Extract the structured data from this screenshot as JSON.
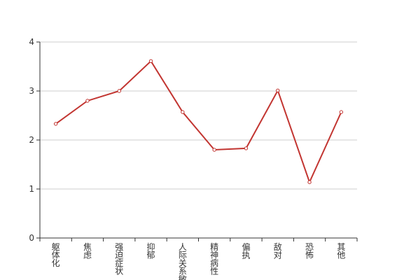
{
  "chart_data": {
    "type": "line",
    "categories": [
      "躯体化",
      "焦虑",
      "强迫症状",
      "抑郁",
      "人际关系敏感",
      "精神病性",
      "偏执",
      "敌对",
      "恐怖",
      "其他"
    ],
    "series": [
      {
        "color": "#c23531",
        "values": [
          2.33,
          2.8,
          3.0,
          3.61,
          2.57,
          1.8,
          1.83,
          3.01,
          1.14,
          2.57
        ]
      }
    ],
    "ylim": [
      0,
      4
    ],
    "yticks": [
      0,
      1,
      2,
      3,
      4
    ],
    "grid": true
  }
}
